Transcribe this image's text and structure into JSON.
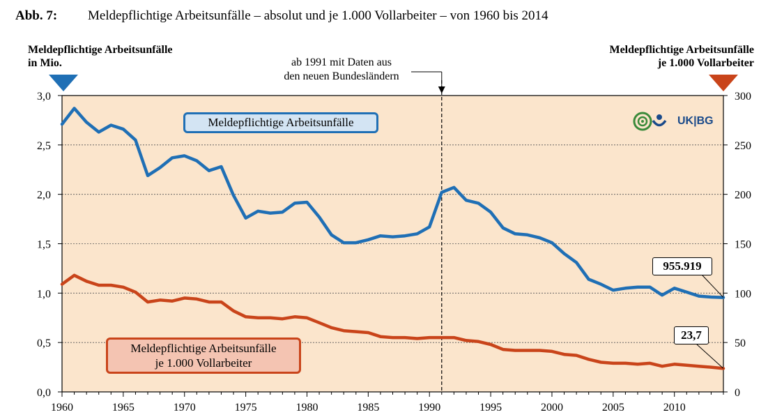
{
  "figure": {
    "number_label": "Abb. 7:",
    "title": "Meldepflichtige Arbeitsunfälle – absolut und je 1.000 Vollarbeiter – von 1960 bis 2014"
  },
  "left_axis_heading": {
    "line1": "Meldepflichtige Arbeitsunfälle",
    "line2": "in Mio."
  },
  "right_axis_heading": {
    "line1": "Meldepflichtige Arbeitsunfälle",
    "line2": "je 1.000 Vollarbeiter"
  },
  "annotation": {
    "line1": "ab 1991 mit Daten aus",
    "line2": "den neuen Bundesländern"
  },
  "legend": {
    "blue": "Meldepflichtige Arbeitsunfälle",
    "red_line1": "Meldepflichtige Arbeitsunfälle",
    "red_line2": "je 1.000 Vollarbeiter"
  },
  "end_labels": {
    "blue": "955.919",
    "red": "23,7"
  },
  "logo": {
    "text": "UK|BG",
    "icon": "ukbg-logo-icon"
  },
  "colors": {
    "background": "#fbe5cc",
    "blue": "#1f6fb5",
    "red": "#c9441a"
  },
  "chart_data": {
    "type": "line",
    "x": [
      1960,
      1961,
      1962,
      1963,
      1964,
      1965,
      1966,
      1967,
      1968,
      1969,
      1970,
      1971,
      1972,
      1973,
      1974,
      1975,
      1976,
      1977,
      1978,
      1979,
      1980,
      1981,
      1982,
      1983,
      1984,
      1985,
      1986,
      1987,
      1988,
      1989,
      1990,
      1991,
      1992,
      1993,
      1994,
      1995,
      1996,
      1997,
      1998,
      1999,
      2000,
      2001,
      2002,
      2003,
      2004,
      2005,
      2006,
      2007,
      2008,
      2009,
      2010,
      2011,
      2012,
      2013,
      2014
    ],
    "series": [
      {
        "name": "Meldepflichtige Arbeitsunfälle",
        "axis": "left",
        "color": "#1f6fb5",
        "values": [
          2.71,
          2.87,
          2.73,
          2.63,
          2.7,
          2.66,
          2.55,
          2.19,
          2.27,
          2.37,
          2.39,
          2.34,
          2.24,
          2.28,
          1.99,
          1.76,
          1.83,
          1.81,
          1.82,
          1.91,
          1.92,
          1.77,
          1.59,
          1.51,
          1.51,
          1.54,
          1.58,
          1.57,
          1.58,
          1.6,
          1.67,
          2.02,
          2.07,
          1.94,
          1.91,
          1.82,
          1.66,
          1.6,
          1.59,
          1.56,
          1.51,
          1.4,
          1.31,
          1.14,
          1.09,
          1.03,
          1.05,
          1.06,
          1.06,
          0.98,
          1.05,
          1.01,
          0.97,
          0.96,
          0.956
        ]
      },
      {
        "name": "Meldepflichtige Arbeitsunfälle je 1.000 Vollarbeiter",
        "axis": "right",
        "color": "#c9441a",
        "values": [
          109,
          118,
          112,
          108,
          108,
          106,
          101,
          91,
          93,
          92,
          95,
          94,
          91,
          91,
          82,
          76,
          75,
          75,
          74,
          76,
          75,
          70,
          65,
          62,
          61,
          60,
          56,
          55,
          55,
          54,
          55,
          55,
          55,
          52,
          51,
          48,
          43,
          42,
          42,
          42,
          41,
          38,
          37,
          33,
          30,
          29,
          29,
          28,
          29,
          26,
          28,
          27,
          26,
          25,
          23.7
        ]
      }
    ],
    "xlim": [
      1960,
      2014
    ],
    "x_ticks": [
      "1960",
      "1965",
      "1970",
      "1975",
      "1980",
      "1985",
      "1990",
      "1995",
      "2000",
      "2005",
      "2010"
    ],
    "y_left": {
      "lim": [
        0,
        3.0
      ],
      "ticks": [
        "0,0",
        "0,5",
        "1,0",
        "1,5",
        "2,0",
        "2,5",
        "3,0"
      ]
    },
    "y_right": {
      "lim": [
        0,
        300
      ],
      "ticks": [
        "0",
        "50",
        "100",
        "150",
        "200",
        "250",
        "300"
      ]
    },
    "grid": "horizontal dotted",
    "marker_year": 1991
  }
}
